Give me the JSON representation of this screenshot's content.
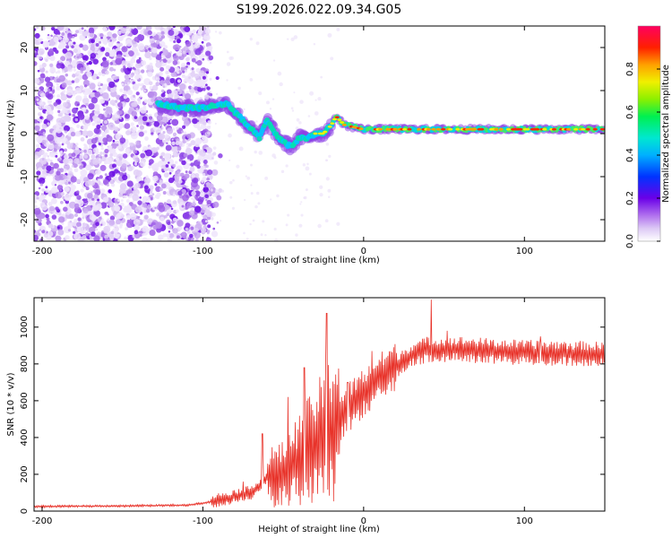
{
  "title": "S199.2026.022.09.34.G05",
  "chart_data": [
    {
      "type": "heatmap",
      "title": "",
      "xlabel": "Height of straight line (km)",
      "ylabel": "Frequency (Hz)",
      "xlim": [
        -205,
        150
      ],
      "ylim": [
        -25,
        25
      ],
      "xticks": [
        -200,
        -100,
        0,
        100
      ],
      "yticks": [
        -20,
        -10,
        0,
        10,
        20
      ],
      "colorbar": {
        "label": "Normalized spectral amplitude",
        "range": [
          0,
          1
        ],
        "ticks": [
          0.0,
          0.2,
          0.4,
          0.6,
          0.8
        ]
      },
      "noise_region_x": [
        -205,
        -95
      ],
      "signal_ridge": [
        {
          "x": -128,
          "y": 7
        },
        {
          "x": -115,
          "y": 6
        },
        {
          "x": -100,
          "y": 6
        },
        {
          "x": -92,
          "y": 6.5
        },
        {
          "x": -85,
          "y": 7
        },
        {
          "x": -80,
          "y": 5
        },
        {
          "x": -75,
          "y": 3
        },
        {
          "x": -70,
          "y": 1
        },
        {
          "x": -65,
          "y": -1
        },
        {
          "x": -60,
          "y": 3
        },
        {
          "x": -55,
          "y": 0
        },
        {
          "x": -50,
          "y": -2
        },
        {
          "x": -45,
          "y": -3
        },
        {
          "x": -40,
          "y": -1
        },
        {
          "x": -35,
          "y": -1
        },
        {
          "x": -30,
          "y": 0
        },
        {
          "x": -25,
          "y": 0
        },
        {
          "x": -20,
          "y": 2
        },
        {
          "x": -17,
          "y": 4
        },
        {
          "x": -12,
          "y": 2
        },
        {
          "x": 0,
          "y": 1
        },
        {
          "x": 50,
          "y": 1
        },
        {
          "x": 100,
          "y": 1
        },
        {
          "x": 150,
          "y": 1
        }
      ]
    },
    {
      "type": "line",
      "title": "",
      "xlabel": "Height of straight line (km)",
      "ylabel": "SNR (10 * v/v)",
      "xlim": [
        -205,
        150
      ],
      "ylim": [
        0,
        1160
      ],
      "xticks": [
        -200,
        -100,
        0,
        100
      ],
      "yticks": [
        0,
        200,
        400,
        600,
        800,
        1000
      ],
      "series": [
        {
          "name": "SNR",
          "color": "#e8332a",
          "trend": [
            {
              "x": -205,
              "y": 25
            },
            {
              "x": -150,
              "y": 28
            },
            {
              "x": -110,
              "y": 32
            },
            {
              "x": -95,
              "y": 50
            },
            {
              "x": -85,
              "y": 70
            },
            {
              "x": -70,
              "y": 100
            },
            {
              "x": -60,
              "y": 180
            },
            {
              "x": -50,
              "y": 200
            },
            {
              "x": -40,
              "y": 280
            },
            {
              "x": -30,
              "y": 360
            },
            {
              "x": -20,
              "y": 450
            },
            {
              "x": -10,
              "y": 560
            },
            {
              "x": 0,
              "y": 640
            },
            {
              "x": 10,
              "y": 720
            },
            {
              "x": 20,
              "y": 790
            },
            {
              "x": 30,
              "y": 850
            },
            {
              "x": 40,
              "y": 880
            },
            {
              "x": 60,
              "y": 880
            },
            {
              "x": 80,
              "y": 870
            },
            {
              "x": 100,
              "y": 860
            },
            {
              "x": 120,
              "y": 860
            },
            {
              "x": 150,
              "y": 850
            }
          ],
          "spikes": [
            {
              "x": -75,
              "y": 160
            },
            {
              "x": -63,
              "y": 420
            },
            {
              "x": -47,
              "y": 620
            },
            {
              "x": -37,
              "y": 780
            },
            {
              "x": -23,
              "y": 1075
            },
            {
              "x": -10,
              "y": 700
            },
            {
              "x": 5,
              "y": 870
            },
            {
              "x": 42,
              "y": 1150
            },
            {
              "x": 52,
              "y": 980
            },
            {
              "x": 110,
              "y": 950
            }
          ]
        }
      ]
    }
  ]
}
